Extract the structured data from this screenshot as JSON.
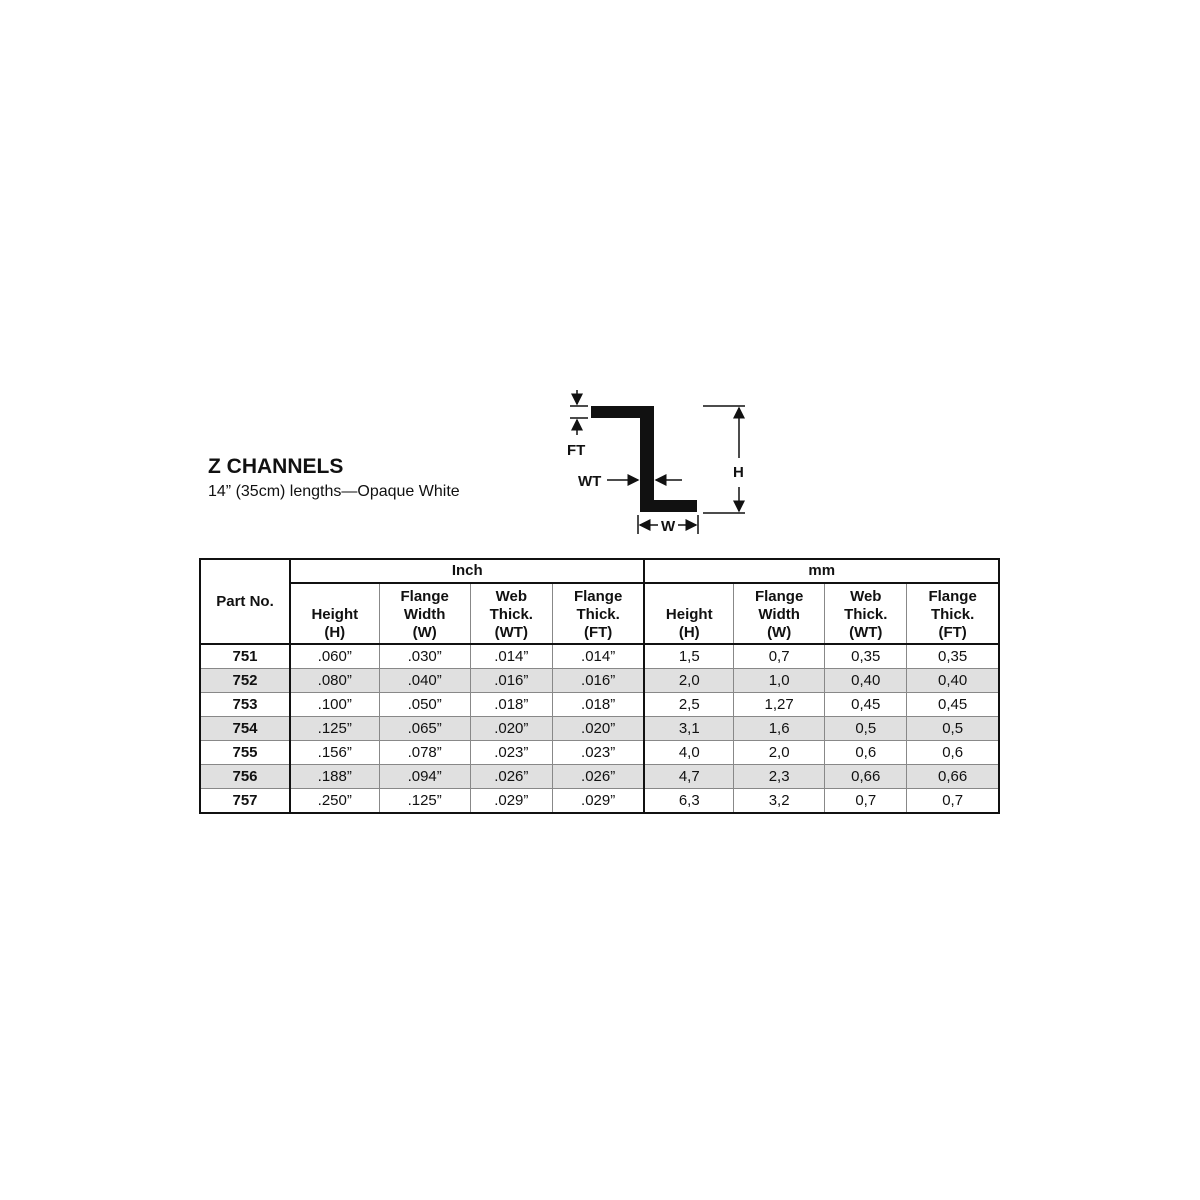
{
  "title": "Z CHANNELS",
  "subtitle": "14” (35cm) lengths—Opaque White",
  "diagram": {
    "labels": {
      "ft": "FT",
      "wt": "WT",
      "h": "H",
      "w": "W"
    }
  },
  "table": {
    "part_header": "Part No.",
    "groups": [
      "Inch",
      "mm"
    ],
    "columns": [
      [
        "Height",
        "(H)"
      ],
      [
        "Flange",
        "Width",
        "(W)"
      ],
      [
        "Web",
        "Thick.",
        "(WT)"
      ],
      [
        "Flange",
        "Thick.",
        "(FT)"
      ],
      [
        "Height",
        "(H)"
      ],
      [
        "Flange",
        "Width",
        "(W)"
      ],
      [
        "Web",
        "Thick.",
        "(WT)"
      ],
      [
        "Flange",
        "Thick.",
        "(FT)"
      ]
    ],
    "rows": [
      [
        "751",
        ".060”",
        ".030”",
        ".014”",
        ".014”",
        "1,5",
        "0,7",
        "0,35",
        "0,35"
      ],
      [
        "752",
        ".080”",
        ".040”",
        ".016”",
        ".016”",
        "2,0",
        "1,0",
        "0,40",
        "0,40"
      ],
      [
        "753",
        ".100”",
        ".050”",
        ".018”",
        ".018”",
        "2,5",
        "1,27",
        "0,45",
        "0,45"
      ],
      [
        "754",
        ".125”",
        ".065”",
        ".020”",
        ".020”",
        "3,1",
        "1,6",
        "0,5",
        "0,5"
      ],
      [
        "755",
        ".156”",
        ".078”",
        ".023”",
        ".023”",
        "4,0",
        "2,0",
        "0,6",
        "0,6"
      ],
      [
        "756",
        ".188”",
        ".094”",
        ".026”",
        ".026”",
        "4,7",
        "2,3",
        "0,66",
        "0,66"
      ],
      [
        "757",
        ".250”",
        ".125”",
        ".029”",
        ".029”",
        "6,3",
        "3,2",
        "0,7",
        "0,7"
      ]
    ],
    "shade_color": "#e0e0e0"
  }
}
